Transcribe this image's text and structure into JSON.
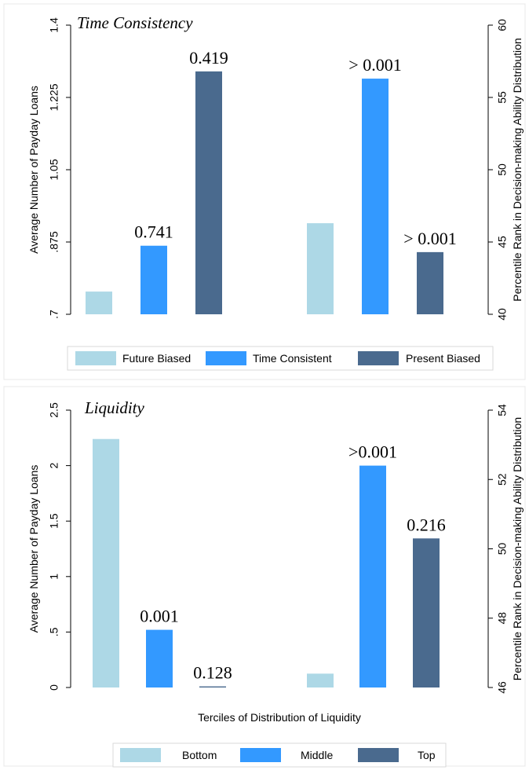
{
  "colors": {
    "future_biased": "#add8e6",
    "time_consistent": "#3399ff",
    "present_biased": "#4a6a8e",
    "panel_border": "#e8e8e8",
    "legend_border": "#d9d9d9"
  },
  "chart_data": [
    {
      "type": "bar",
      "title": "Time Consistency",
      "ylabel_left": "Average Number of Payday Loans",
      "ylabel_right": "Percentile Rank in Decision-making Ability Distribution",
      "xlabel": "",
      "left_axis": {
        "ylim": [
          0.7,
          1.4
        ],
        "ticks": [
          0.7,
          0.875,
          1.05,
          1.225,
          1.4
        ],
        "tick_labels": [
          ".7",
          ".875",
          "1.05",
          "1.225",
          "1.4"
        ]
      },
      "right_axis": {
        "ylim": [
          40,
          60
        ],
        "ticks": [
          40,
          45,
          50,
          55,
          60
        ],
        "tick_labels": [
          "40",
          "45",
          "50",
          "55",
          "60"
        ]
      },
      "legend": {
        "position": "bottom",
        "entries": [
          "Future Biased",
          "Time Consistent",
          "Present Biased"
        ]
      },
      "grid": false,
      "groups": [
        {
          "axis": "left",
          "bars": [
            {
              "series": "Future Biased",
              "value": 0.755,
              "label": ""
            },
            {
              "series": "Time Consistent",
              "value": 0.866,
              "label": "0.741"
            },
            {
              "series": "Present Biased",
              "value": 1.288,
              "label": "0.419"
            }
          ]
        },
        {
          "axis": "right",
          "bars": [
            {
              "series": "Future Biased",
              "value": 46.3,
              "label": ""
            },
            {
              "series": "Time Consistent",
              "value": 56.3,
              "label": "> 0.001"
            },
            {
              "series": "Present Biased",
              "value": 44.3,
              "label": "> 0.001"
            }
          ]
        }
      ]
    },
    {
      "type": "bar",
      "title": "Liquidity",
      "ylabel_left": "Average Number of Payday Loans",
      "ylabel_right": "Percentile Rank in Decision-making Ability Distribution",
      "xlabel": "Terciles of Distribution of Liquidity",
      "left_axis": {
        "ylim": [
          0,
          2.5
        ],
        "ticks": [
          0,
          0.5,
          1,
          1.5,
          2,
          2.5
        ],
        "tick_labels": [
          "0",
          ".5",
          "1",
          "1.5",
          "2",
          "2.5"
        ]
      },
      "right_axis": {
        "ylim": [
          46,
          54
        ],
        "ticks": [
          46,
          48,
          50,
          52,
          54
        ],
        "tick_labels": [
          "46",
          "48",
          "50",
          "52",
          "54"
        ]
      },
      "legend": {
        "position": "bottom",
        "entries": [
          "Bottom",
          "Middle",
          "Top"
        ]
      },
      "grid": false,
      "groups": [
        {
          "axis": "left",
          "bars": [
            {
              "series": "Bottom",
              "value": 2.24,
              "label": ""
            },
            {
              "series": "Middle",
              "value": 0.52,
              "label": "0.001"
            },
            {
              "series": "Top",
              "value": 0.01,
              "label": "0.128"
            }
          ]
        },
        {
          "axis": "right",
          "bars": [
            {
              "series": "Bottom",
              "value": 46.4,
              "label": ""
            },
            {
              "series": "Middle",
              "value": 52.4,
              "label": ">0.001"
            },
            {
              "series": "Top",
              "value": 50.3,
              "label": "0.216"
            }
          ]
        }
      ]
    }
  ]
}
